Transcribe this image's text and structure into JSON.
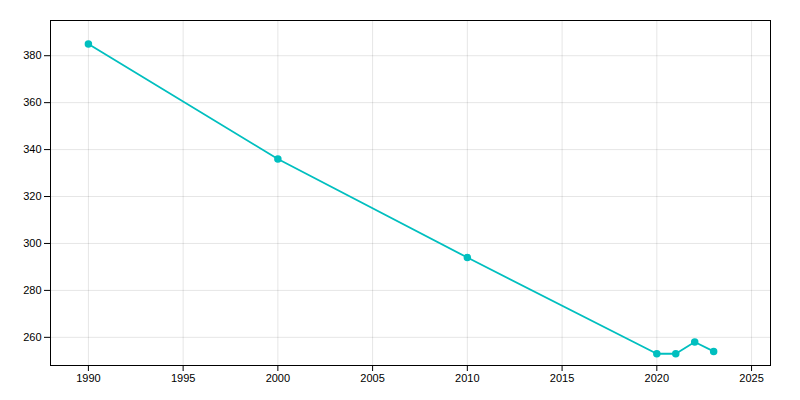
{
  "chart_data": {
    "type": "line",
    "x": [
      1990,
      2000,
      2010,
      2020,
      2021,
      2022,
      2023
    ],
    "values": [
      385,
      336,
      294,
      253,
      253,
      258,
      254
    ],
    "color": "#00BFBF",
    "marker": "circle",
    "xlim": [
      1988,
      2026
    ],
    "ylim": [
      248,
      395
    ],
    "xticks": [
      1990,
      1995,
      2000,
      2005,
      2010,
      2015,
      2020,
      2025
    ],
    "yticks": [
      260,
      280,
      300,
      320,
      340,
      360,
      380
    ],
    "grid": true
  }
}
